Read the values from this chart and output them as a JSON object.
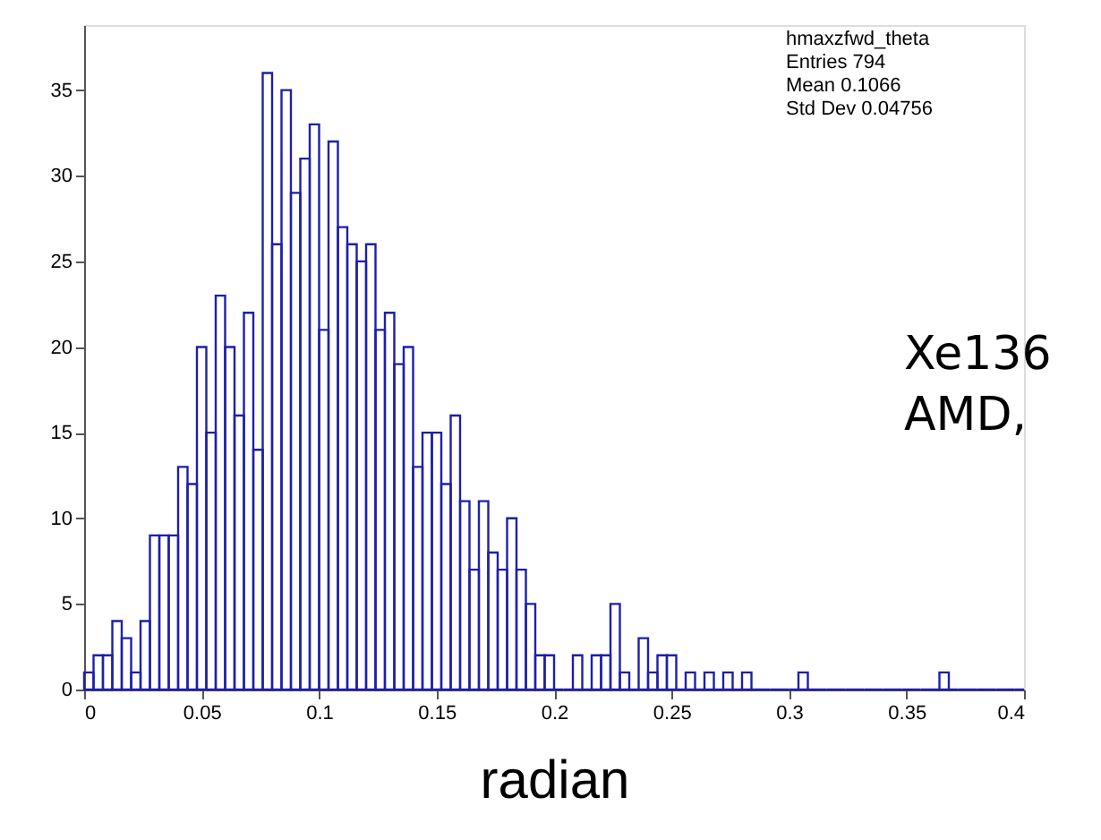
{
  "chart_data": {
    "type": "histogram",
    "xlabel": "radian",
    "bins": [
      0,
      0.004,
      0.008,
      0.012,
      0.016,
      0.02,
      0.024,
      0.028,
      0.032,
      0.036,
      0.04,
      0.044,
      0.048,
      0.052,
      0.056,
      0.06,
      0.064,
      0.068,
      0.072,
      0.076,
      0.08,
      0.084,
      0.088,
      0.092,
      0.096,
      0.1,
      0.104,
      0.108,
      0.112,
      0.116,
      0.12,
      0.124,
      0.128,
      0.132,
      0.136,
      0.14,
      0.144,
      0.148,
      0.152,
      0.156,
      0.16,
      0.164,
      0.168,
      0.172,
      0.176,
      0.18,
      0.184,
      0.188,
      0.192,
      0.196,
      0.2,
      0.204,
      0.208,
      0.212,
      0.216,
      0.22,
      0.224,
      0.228,
      0.232,
      0.236,
      0.24,
      0.244,
      0.248,
      0.252,
      0.256,
      0.26,
      0.264,
      0.268,
      0.272,
      0.276,
      0.28,
      0.284,
      0.288,
      0.292,
      0.296,
      0.3,
      0.304,
      0.308,
      0.312,
      0.316,
      0.32,
      0.324,
      0.328,
      0.332,
      0.336,
      0.34,
      0.344,
      0.348,
      0.352,
      0.356,
      0.36,
      0.364,
      0.368,
      0.372,
      0.376,
      0.38,
      0.384,
      0.388,
      0.392,
      0.396,
      0.4
    ],
    "values": [
      1,
      2,
      2,
      4,
      3,
      1,
      4,
      9,
      9,
      9,
      13,
      12,
      20,
      15,
      23,
      20,
      16,
      22,
      14,
      36,
      26,
      35,
      29,
      31,
      33,
      21,
      32,
      27,
      26,
      25,
      26,
      21,
      22,
      19,
      20,
      13,
      15,
      15,
      12,
      16,
      11,
      7,
      11,
      8,
      7,
      10,
      7,
      5,
      2,
      2,
      0,
      0,
      2,
      0,
      2,
      2,
      5,
      1,
      0,
      3,
      1,
      2,
      2,
      0,
      1,
      0,
      1,
      0,
      1,
      0,
      1,
      0,
      0,
      0,
      0,
      0,
      1,
      0,
      0,
      0,
      0,
      0,
      0,
      0,
      0,
      0,
      0,
      0,
      0,
      0,
      0,
      1,
      0,
      0,
      0,
      0,
      0,
      0,
      0,
      0
    ],
    "color": "#1f1fa8",
    "xlim": [
      0,
      0.4
    ],
    "xticks": [
      0,
      0.05,
      0.1,
      0.15,
      0.2,
      0.25,
      0.3,
      0.35,
      0.4
    ],
    "ylim": [
      0,
      38.8
    ],
    "yticks": [
      0,
      5,
      10,
      15,
      20,
      25,
      30,
      35
    ],
    "grid": false,
    "annotations": [
      "hmaxzfwd_theta",
      "Entries 794",
      "Mean 0.1066",
      "Std Dev 0.04756",
      "Xe136",
      "AMD,"
    ]
  }
}
